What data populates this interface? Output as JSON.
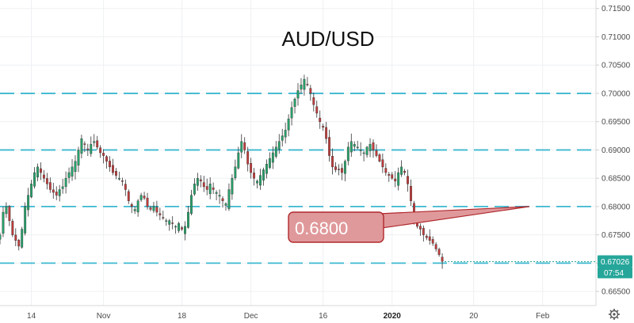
{
  "chart_data": {
    "type": "candlestick",
    "title": "AUD/USD",
    "ylim": [
      0.6625,
      0.7165
    ],
    "y_ticks": [
      0.665,
      0.67,
      0.675,
      0.68,
      0.685,
      0.69,
      0.695,
      0.7,
      0.705,
      0.71,
      0.715
    ],
    "x_ticks": [
      {
        "label": "14",
        "x": 10
      },
      {
        "label": "Nov",
        "x": 33
      },
      {
        "label": "18",
        "x": 58
      },
      {
        "label": "Dec",
        "x": 80
      },
      {
        "label": "16",
        "x": 103
      },
      {
        "label": "2020",
        "x": 125,
        "bold": true
      },
      {
        "label": "20",
        "x": 151
      },
      {
        "label": "Feb",
        "x": 173
      }
    ],
    "x_domain": [
      0,
      190
    ],
    "levels": [
      0.67,
      0.68,
      0.69,
      0.7
    ],
    "level_color": "#3cb8d0",
    "close_series": [
      [
        0,
        0.675
      ],
      [
        1,
        0.679
      ],
      [
        2,
        0.68
      ],
      [
        3,
        0.6775
      ],
      [
        4,
        0.675
      ],
      [
        5,
        0.674
      ],
      [
        6,
        0.673
      ],
      [
        7,
        0.676
      ],
      [
        8,
        0.68
      ],
      [
        9,
        0.682
      ],
      [
        10,
        0.684
      ],
      [
        11,
        0.686
      ],
      [
        12,
        0.687
      ],
      [
        13,
        0.686
      ],
      [
        14,
        0.685
      ],
      [
        15,
        0.684
      ],
      [
        16,
        0.683
      ],
      [
        17,
        0.6825
      ],
      [
        18,
        0.682
      ],
      [
        19,
        0.683
      ],
      [
        20,
        0.6835
      ],
      [
        21,
        0.685
      ],
      [
        22,
        0.686
      ],
      [
        23,
        0.687
      ],
      [
        24,
        0.688
      ],
      [
        25,
        0.69
      ],
      [
        26,
        0.692
      ],
      [
        27,
        0.691
      ],
      [
        28,
        0.69
      ],
      [
        29,
        0.691
      ],
      [
        30,
        0.6915
      ],
      [
        31,
        0.6905
      ],
      [
        32,
        0.6895
      ],
      [
        33,
        0.689
      ],
      [
        34,
        0.688
      ],
      [
        35,
        0.687
      ],
      [
        36,
        0.686
      ],
      [
        37,
        0.6855
      ],
      [
        38,
        0.685
      ],
      [
        39,
        0.6845
      ],
      [
        40,
        0.683
      ],
      [
        41,
        0.681
      ],
      [
        42,
        0.68
      ],
      [
        43,
        0.6795
      ],
      [
        44,
        0.681
      ],
      [
        45,
        0.682
      ],
      [
        46,
        0.6815
      ],
      [
        47,
        0.68
      ],
      [
        48,
        0.6795
      ],
      [
        49,
        0.68
      ],
      [
        50,
        0.679
      ],
      [
        51,
        0.6785
      ],
      [
        52,
        0.678
      ],
      [
        53,
        0.6775
      ],
      [
        54,
        0.6775
      ],
      [
        55,
        0.677
      ],
      [
        56,
        0.6765
      ],
      [
        57,
        0.677
      ],
      [
        58,
        0.676
      ],
      [
        59,
        0.6765
      ],
      [
        60,
        0.679
      ],
      [
        61,
        0.682
      ],
      [
        62,
        0.684
      ],
      [
        63,
        0.685
      ],
      [
        64,
        0.6845
      ],
      [
        65,
        0.6835
      ],
      [
        66,
        0.683
      ],
      [
        67,
        0.684
      ],
      [
        68,
        0.683
      ],
      [
        69,
        0.6825
      ],
      [
        70,
        0.682
      ],
      [
        71,
        0.681
      ],
      [
        72,
        0.6805
      ],
      [
        73,
        0.683
      ],
      [
        74,
        0.685
      ],
      [
        75,
        0.687
      ],
      [
        76,
        0.6895
      ],
      [
        77,
        0.6915
      ],
      [
        78,
        0.69
      ],
      [
        79,
        0.6875
      ],
      [
        80,
        0.686
      ],
      [
        81,
        0.685
      ],
      [
        82,
        0.6845
      ],
      [
        83,
        0.6855
      ],
      [
        84,
        0.6865
      ],
      [
        85,
        0.6875
      ],
      [
        86,
        0.6885
      ],
      [
        87,
        0.6895
      ],
      [
        88,
        0.6905
      ],
      [
        89,
        0.6915
      ],
      [
        90,
        0.6925
      ],
      [
        91,
        0.6935
      ],
      [
        92,
        0.6955
      ],
      [
        93,
        0.6975
      ],
      [
        94,
        0.699
      ],
      [
        95,
        0.7005
      ],
      [
        96,
        0.7015
      ],
      [
        97,
        0.7025
      ],
      [
        98,
        0.7015
      ],
      [
        99,
        0.7
      ],
      [
        100,
        0.698
      ],
      [
        101,
        0.6965
      ],
      [
        102,
        0.695
      ],
      [
        103,
        0.694
      ],
      [
        104,
        0.692
      ],
      [
        105,
        0.689
      ],
      [
        106,
        0.687
      ],
      [
        107,
        0.6865
      ],
      [
        108,
        0.6865
      ],
      [
        109,
        0.686
      ],
      [
        110,
        0.688
      ],
      [
        111,
        0.6905
      ],
      [
        112,
        0.6915
      ],
      [
        113,
        0.691
      ],
      [
        114,
        0.6905
      ],
      [
        115,
        0.69
      ],
      [
        116,
        0.6895
      ],
      [
        117,
        0.6905
      ],
      [
        118,
        0.691
      ],
      [
        119,
        0.69
      ],
      [
        120,
        0.689
      ],
      [
        121,
        0.688
      ],
      [
        122,
        0.687
      ],
      [
        123,
        0.686
      ],
      [
        124,
        0.6855
      ],
      [
        125,
        0.685
      ],
      [
        126,
        0.6845
      ],
      [
        127,
        0.686
      ],
      [
        128,
        0.687
      ],
      [
        129,
        0.686
      ],
      [
        130,
        0.684
      ],
      [
        131,
        0.681
      ],
      [
        132,
        0.678
      ],
      [
        133,
        0.6765
      ],
      [
        134,
        0.676
      ],
      [
        135,
        0.675
      ],
      [
        136,
        0.6745
      ],
      [
        137,
        0.674
      ],
      [
        138,
        0.6735
      ],
      [
        139,
        0.6725
      ],
      [
        140,
        0.6715
      ],
      [
        141,
        0.6703
      ]
    ],
    "last_price": {
      "value": "0.67026",
      "countdown": "07:54",
      "color": "#26a69a"
    },
    "callout": {
      "label": "0.6800",
      "fill": "#e0999b",
      "stroke": "#b0282d"
    },
    "bull_color": "#26a269",
    "bear_color": "#c23b3b"
  }
}
